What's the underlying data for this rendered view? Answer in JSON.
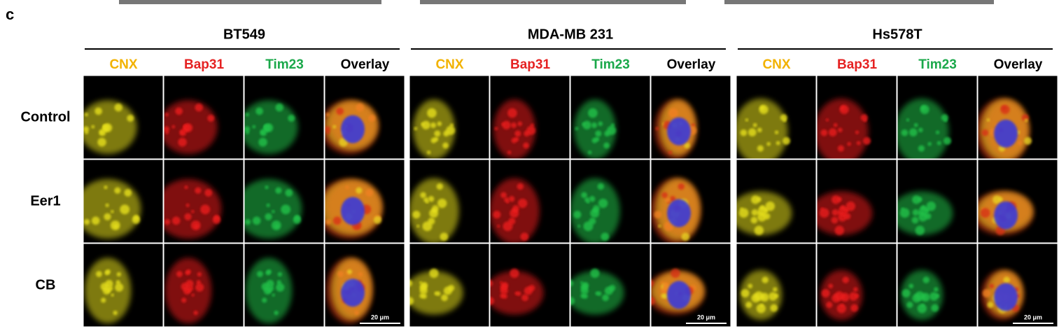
{
  "panel_label": "c",
  "groups": [
    {
      "title": "BT549",
      "channels": [
        {
          "name": "CNX",
          "color": "#f2b200"
        },
        {
          "name": "Bap31",
          "color": "#e52222"
        },
        {
          "name": "Tim23",
          "color": "#1aa84a"
        },
        {
          "name": "Overlay",
          "color": "#000000"
        }
      ],
      "scale_bar": "20 μm"
    },
    {
      "title": "MDA-MB 231",
      "channels": [
        {
          "name": "CNX",
          "color": "#f2b200"
        },
        {
          "name": "Bap31",
          "color": "#e52222"
        },
        {
          "name": "Tim23",
          "color": "#1aa84a"
        },
        {
          "name": "Overlay",
          "color": "#000000"
        }
      ],
      "scale_bar": "20 μm"
    },
    {
      "title": "Hs578T",
      "channels": [
        {
          "name": "CNX",
          "color": "#f2b200"
        },
        {
          "name": "Bap31",
          "color": "#e52222"
        },
        {
          "name": "Tim23",
          "color": "#1aa84a"
        },
        {
          "name": "Overlay",
          "color": "#000000"
        }
      ],
      "scale_bar": "20 μm"
    }
  ],
  "rows": [
    "Control",
    "Eer1",
    "CB"
  ]
}
